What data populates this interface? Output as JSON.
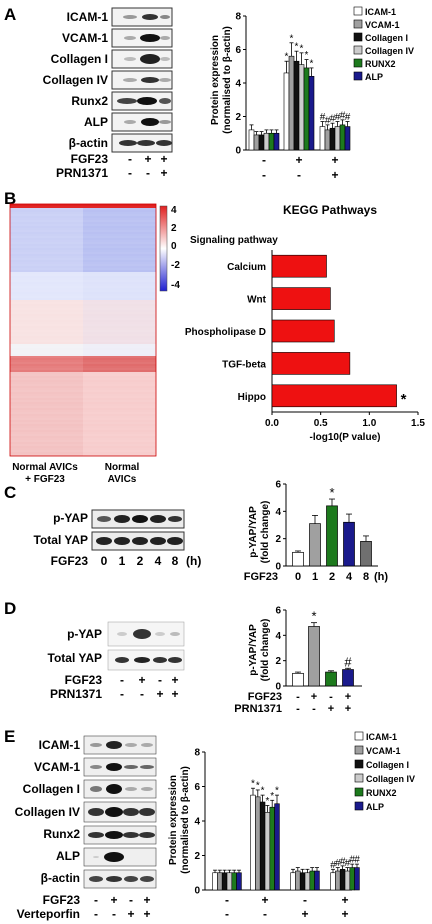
{
  "colors": {
    "icam": "#ffffff",
    "vcam": "#a0a0a0",
    "col1": "#111111",
    "col4": "#cccccc",
    "runx2": "#1d7a1d",
    "alp": "#1a1a8c",
    "kegg_bar": "#ee1111",
    "heat_hi": "#e02020",
    "heat_lo": "#2020d0"
  },
  "panels": {
    "A": {
      "letter": "A",
      "blot_labels": [
        "ICAM-1",
        "VCAM-1",
        "Collagen I",
        "Collagen IV",
        "Runx2",
        "ALP",
        "β-actin"
      ],
      "conditions": [
        {
          "label": "FGF23",
          "marks": [
            "-",
            "+",
            "+"
          ]
        },
        {
          "label": "PRN1371",
          "marks": [
            "-",
            "-",
            "+"
          ]
        }
      ],
      "chart_data": {
        "type": "bar",
        "ylabel": "Protein expression (normalised to β-actin)",
        "ylim": [
          0,
          8
        ],
        "yticks": [
          0,
          2,
          4,
          6,
          8
        ],
        "x_marks": [
          [
            "-",
            "-"
          ],
          [
            "+",
            "-"
          ],
          [
            "+",
            "+"
          ]
        ],
        "series": [
          {
            "name": "ICAM-1",
            "color_key": "icam",
            "values": [
              1.2,
              4.6,
              1.4
            ]
          },
          {
            "name": "VCAM-1",
            "color_key": "vcam",
            "values": [
              0.9,
              5.6,
              1.2
            ]
          },
          {
            "name": "Collagen I",
            "color_key": "col1",
            "values": [
              0.9,
              5.3,
              1.3
            ]
          },
          {
            "name": "Collagen IV",
            "color_key": "col4",
            "values": [
              1.0,
              5.1,
              1.4
            ]
          },
          {
            "name": "RUNX2",
            "color_key": "runx2",
            "values": [
              1.0,
              4.9,
              1.5
            ]
          },
          {
            "name": "ALP",
            "color_key": "alp",
            "values": [
              1.0,
              4.4,
              1.4
            ]
          }
        ],
        "errors": [
          [
            0.3,
            0.2,
            0.2,
            0.2,
            0.2,
            0.2
          ],
          [
            0.7,
            0.8,
            0.6,
            0.7,
            0.5,
            0.5
          ],
          [
            0.3,
            0.3,
            0.3,
            0.3,
            0.3,
            0.3
          ]
        ],
        "sig": [
          [
            "",
            "",
            "",
            "",
            "",
            ""
          ],
          [
            "*",
            "*",
            "*",
            "*",
            "*",
            "*"
          ],
          [
            "#",
            "#",
            "#",
            "#",
            "#",
            "#"
          ]
        ]
      }
    },
    "B": {
      "letter": "B",
      "colorbar_ticks": [
        "4",
        "2",
        "0",
        "-2",
        "-4"
      ],
      "heatmap_cols": [
        "Normal AVICs + FGF23",
        "Normal AVICs"
      ],
      "kegg": {
        "title": "KEGG Pathways",
        "category_header": "Signaling pathway",
        "chart_data": {
          "type": "bar",
          "orientation": "horizontal",
          "categories": [
            "Calcium",
            "Wnt",
            "Phospholipase D",
            "TGF-beta",
            "Hippo"
          ],
          "values": [
            0.56,
            0.6,
            0.64,
            0.8,
            1.28
          ],
          "sig": [
            "",
            "",
            "",
            "",
            "*"
          ],
          "xlabel": "-log10(P value)",
          "xlim": [
            0,
            1.5
          ],
          "xticks": [
            "0.0",
            "0.5",
            "1.0",
            "1.5"
          ]
        }
      }
    },
    "C": {
      "letter": "C",
      "blot_labels": [
        "p-YAP",
        "Total YAP"
      ],
      "treatment_label": "FGF23",
      "timepoints": [
        "0",
        "1",
        "2",
        "4",
        "8"
      ],
      "unit": "(h)",
      "chart_data": {
        "type": "bar",
        "ylabel": "p-YAP/YAP (fold change)",
        "ylim": [
          0,
          6
        ],
        "yticks": [
          0,
          2,
          4,
          6
        ],
        "categories": [
          "0",
          "1",
          "2",
          "4",
          "8"
        ],
        "values": [
          1.0,
          3.1,
          4.4,
          3.2,
          1.8
        ],
        "errors": [
          0.1,
          0.6,
          0.5,
          0.6,
          0.4
        ],
        "bar_colors": [
          "#ffffff",
          "#a0a0a0",
          "#1d7a1d",
          "#1a1a8c",
          "#707070"
        ],
        "sig": [
          "",
          "",
          "*",
          "",
          ""
        ],
        "xaxis_label": "FGF23",
        "unit": "(h)"
      }
    },
    "D": {
      "letter": "D",
      "blot_labels": [
        "p-YAP",
        "Total YAP"
      ],
      "conditions": [
        {
          "label": "FGF23",
          "marks": [
            "-",
            "+",
            "-",
            "+"
          ]
        },
        {
          "label": "PRN1371",
          "marks": [
            "-",
            "-",
            "+",
            "+"
          ]
        }
      ],
      "chart_data": {
        "type": "bar",
        "ylabel": "p-YAP/YAP (fold change)",
        "ylim": [
          0,
          6
        ],
        "yticks": [
          0,
          2,
          4,
          6
        ],
        "values": [
          1.0,
          4.7,
          1.1,
          1.3
        ],
        "errors": [
          0.1,
          0.3,
          0.1,
          0.1
        ],
        "bar_colors": [
          "#ffffff",
          "#a0a0a0",
          "#1d7a1d",
          "#1a1a8c"
        ],
        "sig": [
          "",
          "*",
          "",
          "#"
        ],
        "conditions": [
          {
            "label": "FGF23",
            "marks": [
              "-",
              "+",
              "-",
              "+"
            ]
          },
          {
            "label": "PRN1371",
            "marks": [
              "-",
              "-",
              "+",
              "+"
            ]
          }
        ]
      }
    },
    "E": {
      "letter": "E",
      "blot_labels": [
        "ICAM-1",
        "VCAM-1",
        "Collagen I",
        "Collagen IV",
        "Runx2",
        "ALP",
        "β-actin"
      ],
      "conditions": [
        {
          "label": "FGF23",
          "marks": [
            "-",
            "+",
            "-",
            "+"
          ]
        },
        {
          "label": "Verteporfin",
          "marks": [
            "-",
            "-",
            "+",
            "+"
          ]
        }
      ],
      "chart_data": {
        "type": "bar",
        "ylabel": "Protein expression (normalised to β-actin)",
        "ylim": [
          0,
          8
        ],
        "yticks": [
          0,
          2,
          4,
          6,
          8
        ],
        "x_marks": [
          [
            "-",
            "-"
          ],
          [
            "+",
            "-"
          ],
          [
            "-",
            "+"
          ],
          [
            "+",
            "+"
          ]
        ],
        "series": [
          {
            "name": "ICAM-1",
            "color_key": "icam",
            "values": [
              1.0,
              5.5,
              1.0,
              1.0
            ]
          },
          {
            "name": "VCAM-1",
            "color_key": "vcam",
            "values": [
              1.0,
              5.4,
              1.1,
              1.1
            ]
          },
          {
            "name": "Collagen I",
            "color_key": "col1",
            "values": [
              1.0,
              5.1,
              1.0,
              1.2
            ]
          },
          {
            "name": "Collagen IV",
            "color_key": "col4",
            "values": [
              1.0,
              4.5,
              1.0,
              1.1
            ]
          },
          {
            "name": "RUNX2",
            "color_key": "runx2",
            "values": [
              1.0,
              4.8,
              1.1,
              1.3
            ]
          },
          {
            "name": "ALP",
            "color_key": "alp",
            "values": [
              1.0,
              5.0,
              1.1,
              1.3
            ]
          }
        ],
        "errors": [
          [
            0.15,
            0.15,
            0.15,
            0.15,
            0.15,
            0.15
          ],
          [
            0.4,
            0.4,
            0.4,
            0.4,
            0.4,
            0.5
          ],
          [
            0.2,
            0.2,
            0.2,
            0.2,
            0.2,
            0.2
          ],
          [
            0.2,
            0.2,
            0.2,
            0.2,
            0.2,
            0.2
          ]
        ],
        "sig": [
          [
            "",
            "",
            "",
            "",
            "",
            ""
          ],
          [
            "*",
            "*",
            "*",
            "*",
            "*",
            "*"
          ],
          [
            "",
            "",
            "",
            "",
            "",
            ""
          ],
          [
            "#",
            "#",
            "#",
            "#",
            "#",
            "#"
          ]
        ]
      }
    }
  }
}
